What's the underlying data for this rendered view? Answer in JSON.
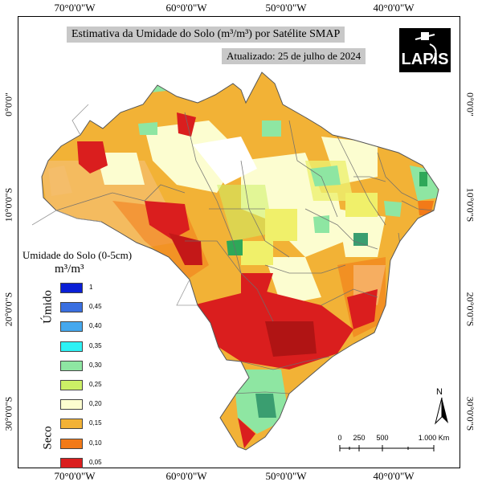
{
  "map": {
    "title": "Estimativa da Umidade do Solo (m³/m³) por Satélite SMAP",
    "updated": "Atualizado: 25 de julho de 2024",
    "logo_text": "LAPIS",
    "grid": {
      "longitude_labels": [
        "70°0'0\"W",
        "60°0'0\"W",
        "50°0'0\"W",
        "40°0'0\"W"
      ],
      "latitude_labels": [
        "0°0'0\"",
        "10°0'0\"S",
        "20°0'0\"S",
        "30°0'0\"S"
      ]
    },
    "legend": {
      "title": "Umidade do Solo (0-5cm)",
      "unit": "m³/m³",
      "wet_label": "Úmido",
      "dry_label": "Seco",
      "classes": [
        {
          "label": "1",
          "color": "#0a1fd6"
        },
        {
          "label": "0,45",
          "color": "#3a6fe0"
        },
        {
          "label": "0,40",
          "color": "#45a8ee"
        },
        {
          "label": "0,35",
          "color": "#2ef2f5"
        },
        {
          "label": "0,30",
          "color": "#8ee6a2"
        },
        {
          "label": "0,25",
          "color": "#ccf066"
        },
        {
          "label": "0,20",
          "color": "#fcfdd0"
        },
        {
          "label": "0,15",
          "color": "#f2b236"
        },
        {
          "label": "0,10",
          "color": "#f27a18"
        },
        {
          "label": "0,05",
          "color": "#da1e1e"
        }
      ]
    },
    "north_label": "N",
    "scale": {
      "labels": [
        "0",
        "250",
        "500",
        "1.000 Km"
      ]
    }
  }
}
